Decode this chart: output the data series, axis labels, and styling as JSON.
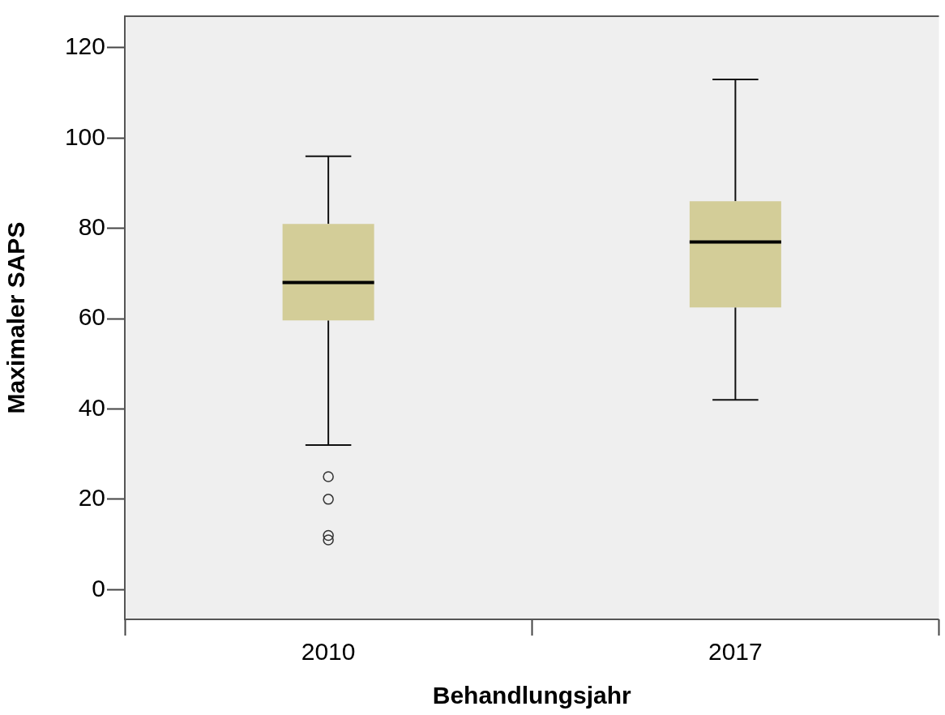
{
  "chart_data": {
    "type": "box",
    "xlabel": "Behandlungsjahr",
    "ylabel": "Maximaler SAPS",
    "categories": [
      "2010",
      "2017"
    ],
    "color": "#d3cd98",
    "boxes": [
      {
        "low": 32,
        "q1": 59.6,
        "median": 68,
        "q3": 81,
        "high": 96,
        "outliers": [
          25,
          20,
          12,
          11
        ]
      },
      {
        "low": 42,
        "q1": 62.5,
        "median": 77,
        "q3": 86,
        "high": 113
      }
    ],
    "ylim": [
      -6.6,
      127
    ],
    "yticks": [
      0,
      20,
      40,
      60,
      80,
      100,
      120
    ],
    "grid": false
  }
}
